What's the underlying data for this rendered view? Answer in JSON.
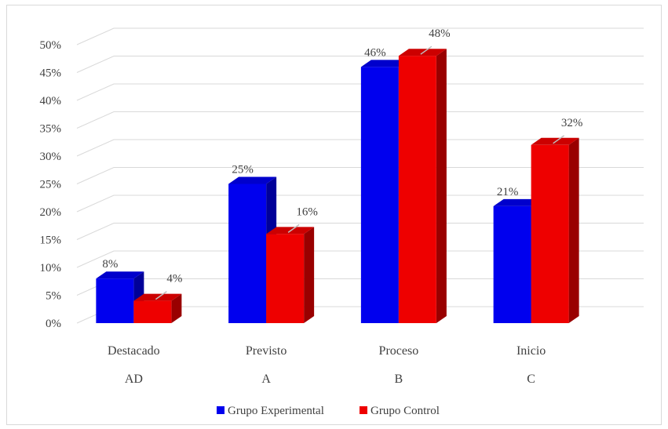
{
  "chart_data": {
    "type": "bar",
    "title": "",
    "xlabel": "",
    "ylabel": "",
    "categories": [
      "Destacado",
      "Previsto",
      "Proceso",
      "Inicio"
    ],
    "category_codes": [
      "AD",
      "A",
      "B",
      "C"
    ],
    "ylim": [
      0,
      50
    ],
    "y_ticks": [
      "0%",
      "5%",
      "10%",
      "15%",
      "20%",
      "25%",
      "30%",
      "35%",
      "40%",
      "45%",
      "50%"
    ],
    "grid": true,
    "legend_position": "bottom",
    "series": [
      {
        "name": "Grupo Experimental",
        "values": [
          8,
          25,
          46,
          21
        ],
        "labels": [
          "8%",
          "25%",
          "46%",
          "21%"
        ],
        "color": "#0000ee",
        "top_color": "#0000cc",
        "side_color": "#000099"
      },
      {
        "name": "Grupo Control",
        "values": [
          4,
          16,
          48,
          32
        ],
        "labels": [
          "4%",
          "16%",
          "48%",
          "32%"
        ],
        "color": "#ee0000",
        "top_color": "#cc0000",
        "side_color": "#990000"
      }
    ]
  }
}
